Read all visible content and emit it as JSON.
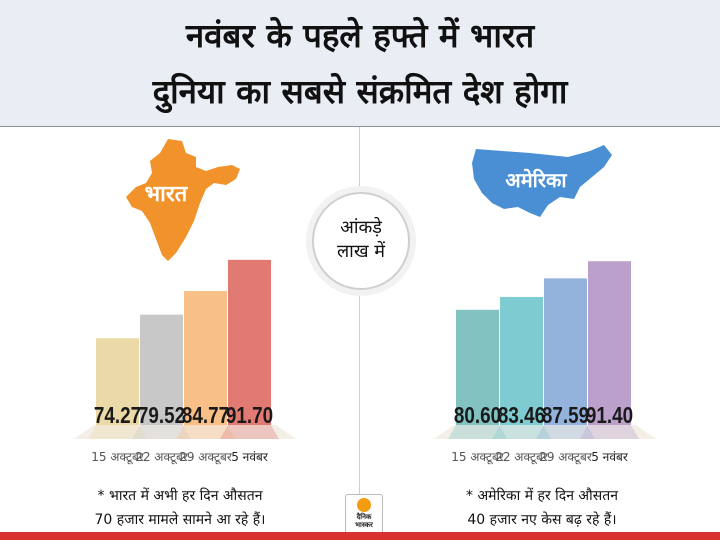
{
  "header": {
    "line1": "नवंबर के पहले हफ्ते में भारत",
    "line2": "दुनिया का सबसे संक्रमित देश होगा"
  },
  "center_badge": {
    "line1": "आंकड़े",
    "line2": "लाख में"
  },
  "notes": {
    "left_line1": "* भारत में अभी हर दिन औसतन",
    "left_line2": "70 हजार मामले सामने आ रहे हैं।",
    "right_line1": "* अमेरिका में हर दिन औसतन",
    "right_line2": "40 हजार नए केस बढ़ रहे हैं।"
  },
  "logo": {
    "line1": "दैनिक",
    "line2": "भास्कर"
  },
  "colors": {
    "india_map": "#f2922a",
    "usa_map": "#4a8fd3",
    "india_bars": [
      "#ebd9a8",
      "#c8c8c8",
      "#f8bf86",
      "#e07a72"
    ],
    "usa_bars": [
      "#82c3c2",
      "#7ecbd2",
      "#93b3dc",
      "#bba0cc"
    ],
    "accent": "#d9322e"
  },
  "icons": [
    "india-map-icon",
    "usa-map-icon"
  ],
  "chart_data": [
    {
      "type": "bar",
      "map_label": "भारत",
      "categories": [
        "15 अक्टूबर",
        "22 अक्टूबर",
        "29 अक्टूबर",
        "5 नवंबर"
      ],
      "values": [
        74.27,
        79.52,
        84.77,
        91.7
      ],
      "labels": [
        "74.27",
        "79.52",
        "84.77",
        "91.70"
      ],
      "ylim": [
        55,
        95
      ]
    },
    {
      "type": "bar",
      "map_label": "अमेरिका",
      "categories": [
        "15 अक्टूबर",
        "22 अक्टूबर",
        "29 अक्टूबर",
        "5 नवंबर"
      ],
      "values": [
        80.6,
        83.46,
        87.59,
        91.4
      ],
      "labels": [
        "80.60",
        "83.46",
        "87.59",
        "91.40"
      ],
      "ylim": [
        55,
        95
      ]
    }
  ]
}
